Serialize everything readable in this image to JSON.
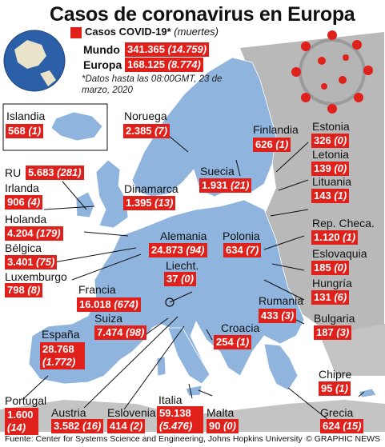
{
  "title": "Casos de coronavirus en Europa",
  "legend": {
    "label": "Casos COVID-19*",
    "sublabel": "(muertes)",
    "color": "#e0201b"
  },
  "world": [
    {
      "name": "Mundo",
      "cases": "341.365",
      "deaths": "(14.759)"
    },
    {
      "name": "Europa",
      "cases": "168.125",
      "deaths": "(8.774)"
    }
  ],
  "note": "*Datos hasta las 08:00GMT, 23 de marzo, 2020",
  "countries": [
    {
      "key": "islandia",
      "name": "Islandia",
      "cases": "568",
      "deaths": "(1)"
    },
    {
      "key": "noruega",
      "name": "Noruega",
      "cases": "2.385",
      "deaths": "(7)"
    },
    {
      "key": "finlandia",
      "name": "Finlandia",
      "cases": "626",
      "deaths": "(1)"
    },
    {
      "key": "estonia",
      "name": "Estonia",
      "cases": "326",
      "deaths": "(0)"
    },
    {
      "key": "letonia",
      "name": "Letonia",
      "cases": "139",
      "deaths": "(0)"
    },
    {
      "key": "lituania",
      "name": "Lituania",
      "cases": "143",
      "deaths": "(1)"
    },
    {
      "key": "ru",
      "name": "RU",
      "cases": "5.683",
      "deaths": "(281)"
    },
    {
      "key": "irlanda",
      "name": "Irlanda",
      "cases": "906",
      "deaths": "(4)"
    },
    {
      "key": "dinamarca",
      "name": "Dinamarca",
      "cases": "1.395",
      "deaths": "(13)"
    },
    {
      "key": "suecia",
      "name": "Suecia",
      "cases": "1.931",
      "deaths": "(21)"
    },
    {
      "key": "holanda",
      "name": "Holanda",
      "cases": "4.204",
      "deaths": "(179)"
    },
    {
      "key": "belgica",
      "name": "Bélgica",
      "cases": "3.401",
      "deaths": "(75)"
    },
    {
      "key": "luxemburgo",
      "name": "Luxemburgo",
      "cases": "798",
      "deaths": "(8)"
    },
    {
      "key": "alemania",
      "name": "Alemania",
      "cases": "24.873",
      "deaths": "(94)"
    },
    {
      "key": "polonia",
      "name": "Polonia",
      "cases": "634",
      "deaths": "(7)"
    },
    {
      "key": "repcheca",
      "name": "Rep. Checa.",
      "cases": "1.120",
      "deaths": "(1)"
    },
    {
      "key": "eslovaquia",
      "name": "Eslovaquia",
      "cases": "185",
      "deaths": "(0)"
    },
    {
      "key": "hungria",
      "name": "Hungría",
      "cases": "131",
      "deaths": "(6)"
    },
    {
      "key": "liecht",
      "name": "Liecht.",
      "cases": "37",
      "deaths": "(0)"
    },
    {
      "key": "francia",
      "name": "Francia",
      "cases": "16.018",
      "deaths": "(674)"
    },
    {
      "key": "suiza",
      "name": "Suiza",
      "cases": "7.474",
      "deaths": "(98)"
    },
    {
      "key": "rumania",
      "name": "Rumania",
      "cases": "433",
      "deaths": "(3)"
    },
    {
      "key": "croacia",
      "name": "Croacia",
      "cases": "254",
      "deaths": "(1)"
    },
    {
      "key": "bulgaria",
      "name": "Bulgaria",
      "cases": "187",
      "deaths": "(3)"
    },
    {
      "key": "espana",
      "name": "España",
      "cases": "28.768",
      "deaths": "(1.772)"
    },
    {
      "key": "chipre",
      "name": "Chipre",
      "cases": "95",
      "deaths": "(1)"
    },
    {
      "key": "portugal",
      "name": "Portugal",
      "cases": "1.600",
      "deaths": "(14)"
    },
    {
      "key": "austria",
      "name": "Austria",
      "cases": "3.582",
      "deaths": "(16)"
    },
    {
      "key": "eslovenia",
      "name": "Eslovenia",
      "cases": "414",
      "deaths": "(2)"
    },
    {
      "key": "italia",
      "name": "Italia",
      "cases": "59.138",
      "deaths": "(5.476)"
    },
    {
      "key": "malta",
      "name": "Malta",
      "cases": "90",
      "deaths": "(0)"
    },
    {
      "key": "grecia",
      "name": "Grecia",
      "cases": "624",
      "deaths": "(15)"
    }
  ],
  "source": "Fuente: Center for Systems Science and Engineering, Johns Hopkins University",
  "credit": "© GRAPHIC NEWS",
  "colors": {
    "land": "#8fb4de",
    "other_land": "#b9b9b9",
    "sea": "#ffffff",
    "accent": "#e0201b"
  }
}
